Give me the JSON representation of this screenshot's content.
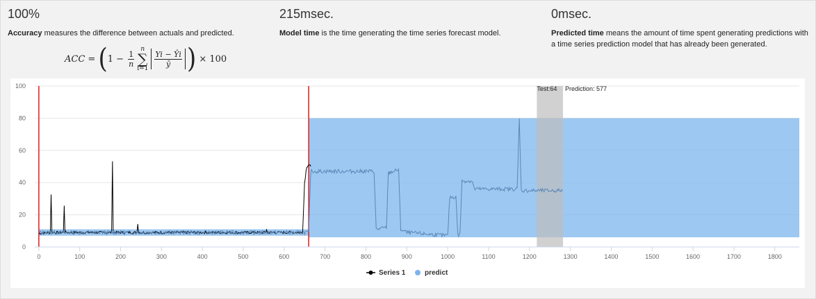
{
  "metrics": {
    "accuracy": {
      "value": "100%",
      "term": "Accuracy",
      "desc": " measures the difference between actuals and predicted."
    },
    "model_time": {
      "value": "215msec.",
      "term": "Model time",
      "desc": " is the time generating the time series forecast model."
    },
    "predicted_time": {
      "value": "0msec.",
      "term": "Predicted time",
      "desc": " means the amount of time spent generating predictions with a time series prediction model that has already been generated."
    }
  },
  "formula": {
    "lhs": "ACC",
    "one": "1",
    "minus": "−",
    "frac1_num": "1",
    "frac1_den": "n",
    "sum_top": "n",
    "sum_bottom": "i=1",
    "frac2_num": "Yi − Ŷi",
    "frac2_den": "ȳ",
    "times": "× 100"
  },
  "chart_data": {
    "type": "line",
    "xlim": [
      -10,
      1860
    ],
    "ylim": [
      0,
      100
    ],
    "x_ticks": [
      0,
      100,
      200,
      300,
      400,
      500,
      600,
      700,
      800,
      900,
      1000,
      1100,
      1200,
      1300,
      1400,
      1500,
      1600,
      1700,
      1800
    ],
    "y_ticks": [
      0,
      20,
      40,
      60,
      80,
      100
    ],
    "grid": "horizontal",
    "legend_position": "bottom-center",
    "vertical_lines": [
      0,
      660
    ],
    "predict_bands": [
      {
        "x0": 0,
        "x1": 660,
        "y0": 7,
        "y1": 11
      },
      {
        "x0": 660,
        "x1": 1860,
        "y0": 6,
        "y1": 80
      }
    ],
    "test_band": {
      "x0": 1218,
      "x1": 1282,
      "y0": 0,
      "y1": 100
    },
    "annotation": {
      "test_label": "Test:64",
      "prediction_label": "Prediction: 577"
    },
    "series": [
      {
        "name": "Series 1",
        "color": "#000000",
        "segments": [
          [
            0,
            8.5
          ],
          [
            28,
            9
          ],
          [
            30,
            33
          ],
          [
            32,
            9
          ],
          [
            60,
            9
          ],
          [
            62,
            26
          ],
          [
            64,
            9
          ],
          [
            178,
            9
          ],
          [
            180,
            54
          ],
          [
            182,
            9
          ],
          [
            240,
            9
          ],
          [
            242,
            15
          ],
          [
            244,
            9
          ],
          [
            555,
            9
          ],
          [
            557,
            11
          ],
          [
            559,
            9
          ],
          [
            645,
            9
          ],
          [
            650,
            40
          ],
          [
            655,
            50
          ],
          [
            660,
            51
          ],
          [
            665,
            50
          ]
        ]
      },
      {
        "name": "predict",
        "color": "#7cb5ec",
        "segments": [
          [
            0,
            9
          ],
          [
            660,
            9
          ],
          [
            665,
            47
          ],
          [
            820,
            47
          ],
          [
            825,
            11
          ],
          [
            850,
            12
          ],
          [
            855,
            46
          ],
          [
            880,
            48
          ],
          [
            885,
            11
          ],
          [
            900,
            9
          ],
          [
            1000,
            7
          ],
          [
            1005,
            31
          ],
          [
            1020,
            31
          ],
          [
            1025,
            7
          ],
          [
            1030,
            8
          ],
          [
            1035,
            41
          ],
          [
            1060,
            41
          ],
          [
            1065,
            36
          ],
          [
            1170,
            36
          ],
          [
            1175,
            80
          ],
          [
            1180,
            35
          ],
          [
            1282,
            35
          ]
        ]
      }
    ]
  }
}
